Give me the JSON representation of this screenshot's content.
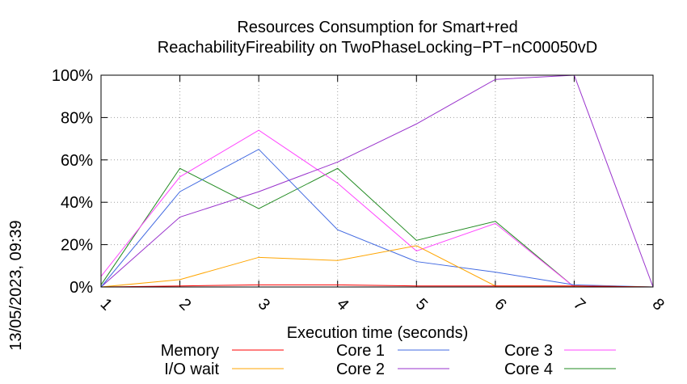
{
  "chart_data": {
    "type": "line",
    "title_line1": "Resources Consumption for Smart+red",
    "title_line2": "ReachabilityFireability on TwoPhaseLocking−PT−nC00050vD",
    "xlabel": "Execution time (seconds)",
    "ylabel": "",
    "side_label": "13/05/2023, 09:39",
    "xlim": [
      1,
      8
    ],
    "ylim": [
      0,
      100
    ],
    "x_ticks": [
      "1",
      "2",
      "3",
      "4",
      "5",
      "6",
      "7",
      "8"
    ],
    "y_ticks": [
      "0%",
      "20%",
      "40%",
      "60%",
      "80%",
      "100%"
    ],
    "grid": true,
    "legend_position": "bottom",
    "series": [
      {
        "name": "Memory",
        "color": "#ff0000",
        "x": [
          1,
          2,
          3,
          4,
          5,
          6,
          7,
          8
        ],
        "values": [
          0,
          0.5,
          1,
          1,
          0.5,
          0.5,
          0.5,
          0
        ]
      },
      {
        "name": "I/O wait",
        "color": "#ffa500",
        "x": [
          1,
          2,
          3,
          4,
          5,
          6,
          7,
          8
        ],
        "values": [
          0,
          3.5,
          14,
          12.5,
          19.5,
          0.5,
          0.5,
          0
        ]
      },
      {
        "name": "Core 1",
        "color": "#4169e1",
        "x": [
          1,
          2,
          3,
          4,
          5,
          6,
          7,
          8
        ],
        "values": [
          0,
          45,
          65,
          27,
          12,
          7,
          1,
          0
        ]
      },
      {
        "name": "Core 2",
        "color": "#9932cc",
        "x": [
          1,
          2,
          3,
          4,
          5,
          6,
          7,
          8
        ],
        "values": [
          0,
          33,
          45,
          59,
          77,
          98,
          100,
          0
        ]
      },
      {
        "name": "Core 3",
        "color": "#ff44ff",
        "x": [
          1,
          2,
          3,
          4,
          5,
          6,
          7,
          8
        ],
        "values": [
          5,
          52,
          74,
          49,
          17,
          30,
          0,
          0
        ]
      },
      {
        "name": "Core 4",
        "color": "#228b22",
        "x": [
          1,
          2,
          3,
          4,
          5,
          6,
          7,
          8
        ],
        "values": [
          1,
          56,
          37,
          56,
          22,
          31,
          0,
          0
        ]
      }
    ]
  }
}
